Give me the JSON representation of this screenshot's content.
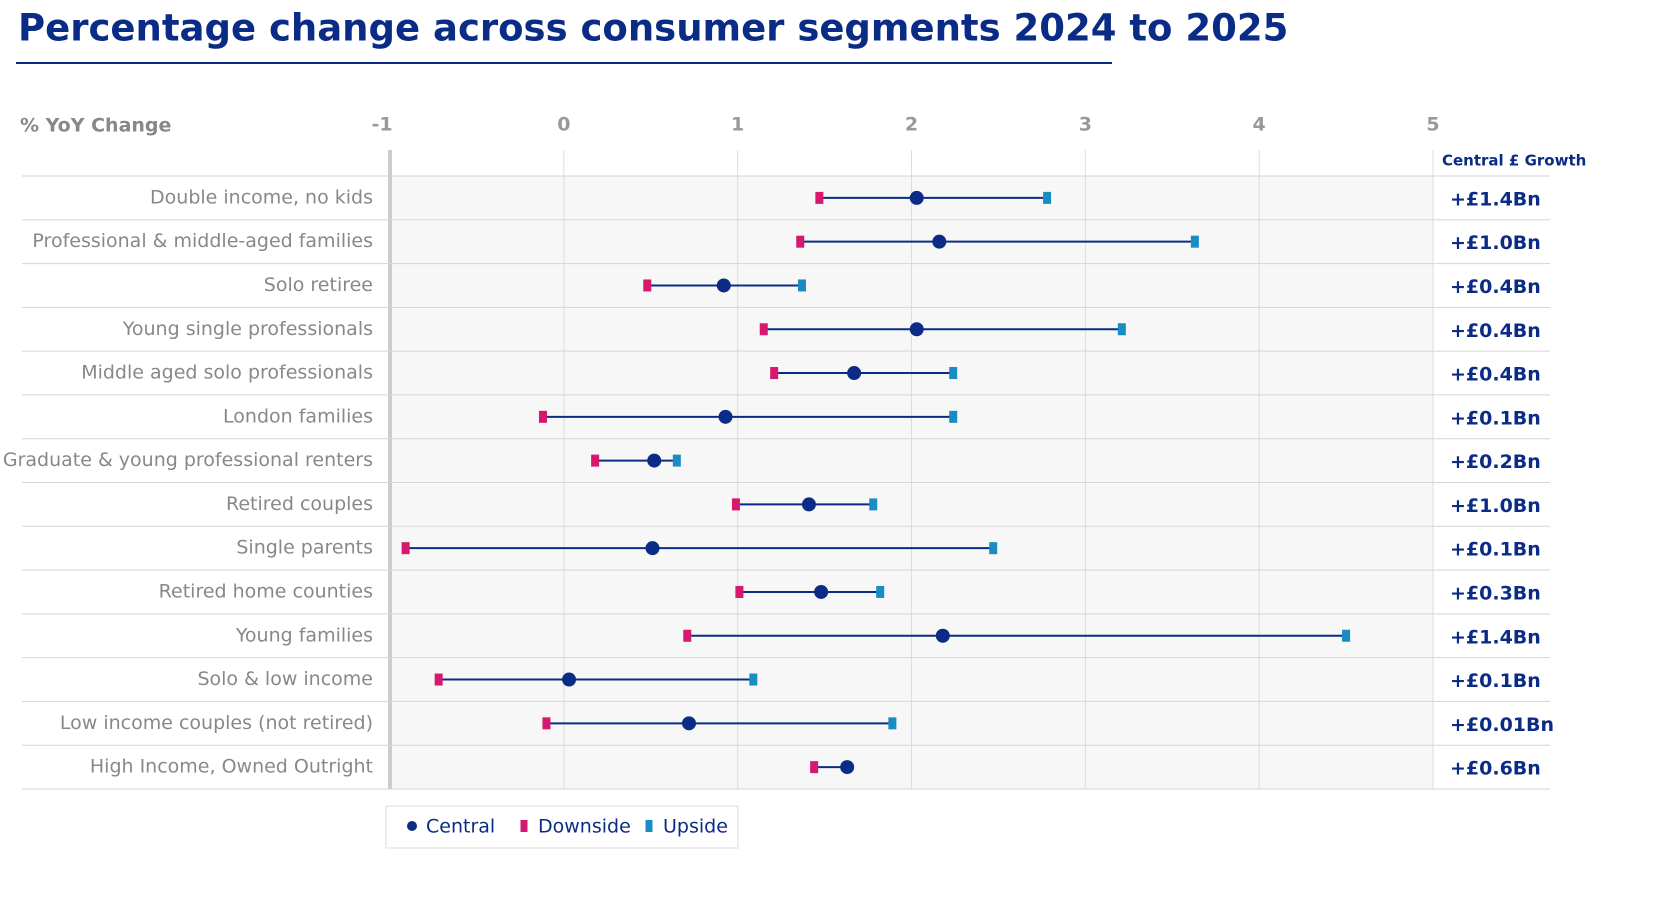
{
  "chart_data": {
    "type": "range",
    "title": "Percentage change across consumer segments 2024 to 2025",
    "y_axis_title": "% YoY Change",
    "right_column_title": "Central £ Growth",
    "categories": [
      "Double income, no kids",
      "Professional & middle-aged families",
      "Solo retiree",
      "Young single professionals",
      "Middle aged solo professionals",
      "London families",
      "Graduate & young professional renters",
      "Retired couples",
      "Single parents",
      "Retired home counties",
      "Young families",
      "Solo & low income",
      "Low income couples (not retired)",
      "High Income, Owned Outright"
    ],
    "right_column_labels": [
      "+£1.4Bn",
      "+£1.0Bn",
      "+£0.4Bn",
      "+£0.4Bn",
      "+£0.4Bn",
      "+£0.1Bn",
      "+£0.2Bn",
      "+£1.0Bn",
      "+£0.1Bn",
      "+£0.3Bn",
      "+£1.4Bn",
      "+£0.1Bn",
      "+£0.01Bn",
      "+£0.6Bn"
    ],
    "series": [
      {
        "name": "Central",
        "color": "#0b2c86",
        "values": [
          2.03,
          2.16,
          0.92,
          2.03,
          1.67,
          0.93,
          0.52,
          1.41,
          0.51,
          1.48,
          2.18,
          0.03,
          0.72,
          1.63
        ]
      },
      {
        "name": "Downside",
        "color": "#d6186f",
        "values": [
          1.47,
          1.36,
          0.48,
          1.15,
          1.21,
          -0.12,
          0.18,
          0.99,
          -0.91,
          1.01,
          0.71,
          -0.72,
          -0.1,
          1.44
        ]
      },
      {
        "name": "Upside",
        "color": "#1a8cc4",
        "values": [
          2.78,
          3.63,
          1.37,
          3.21,
          2.24,
          2.24,
          0.65,
          1.78,
          2.47,
          1.82,
          4.5,
          1.09,
          1.89,
          1.63
        ]
      }
    ],
    "xlim": [
      -1,
      5
    ],
    "xticks": [
      -1,
      0,
      1,
      2,
      3,
      4,
      5
    ],
    "grid": true
  }
}
